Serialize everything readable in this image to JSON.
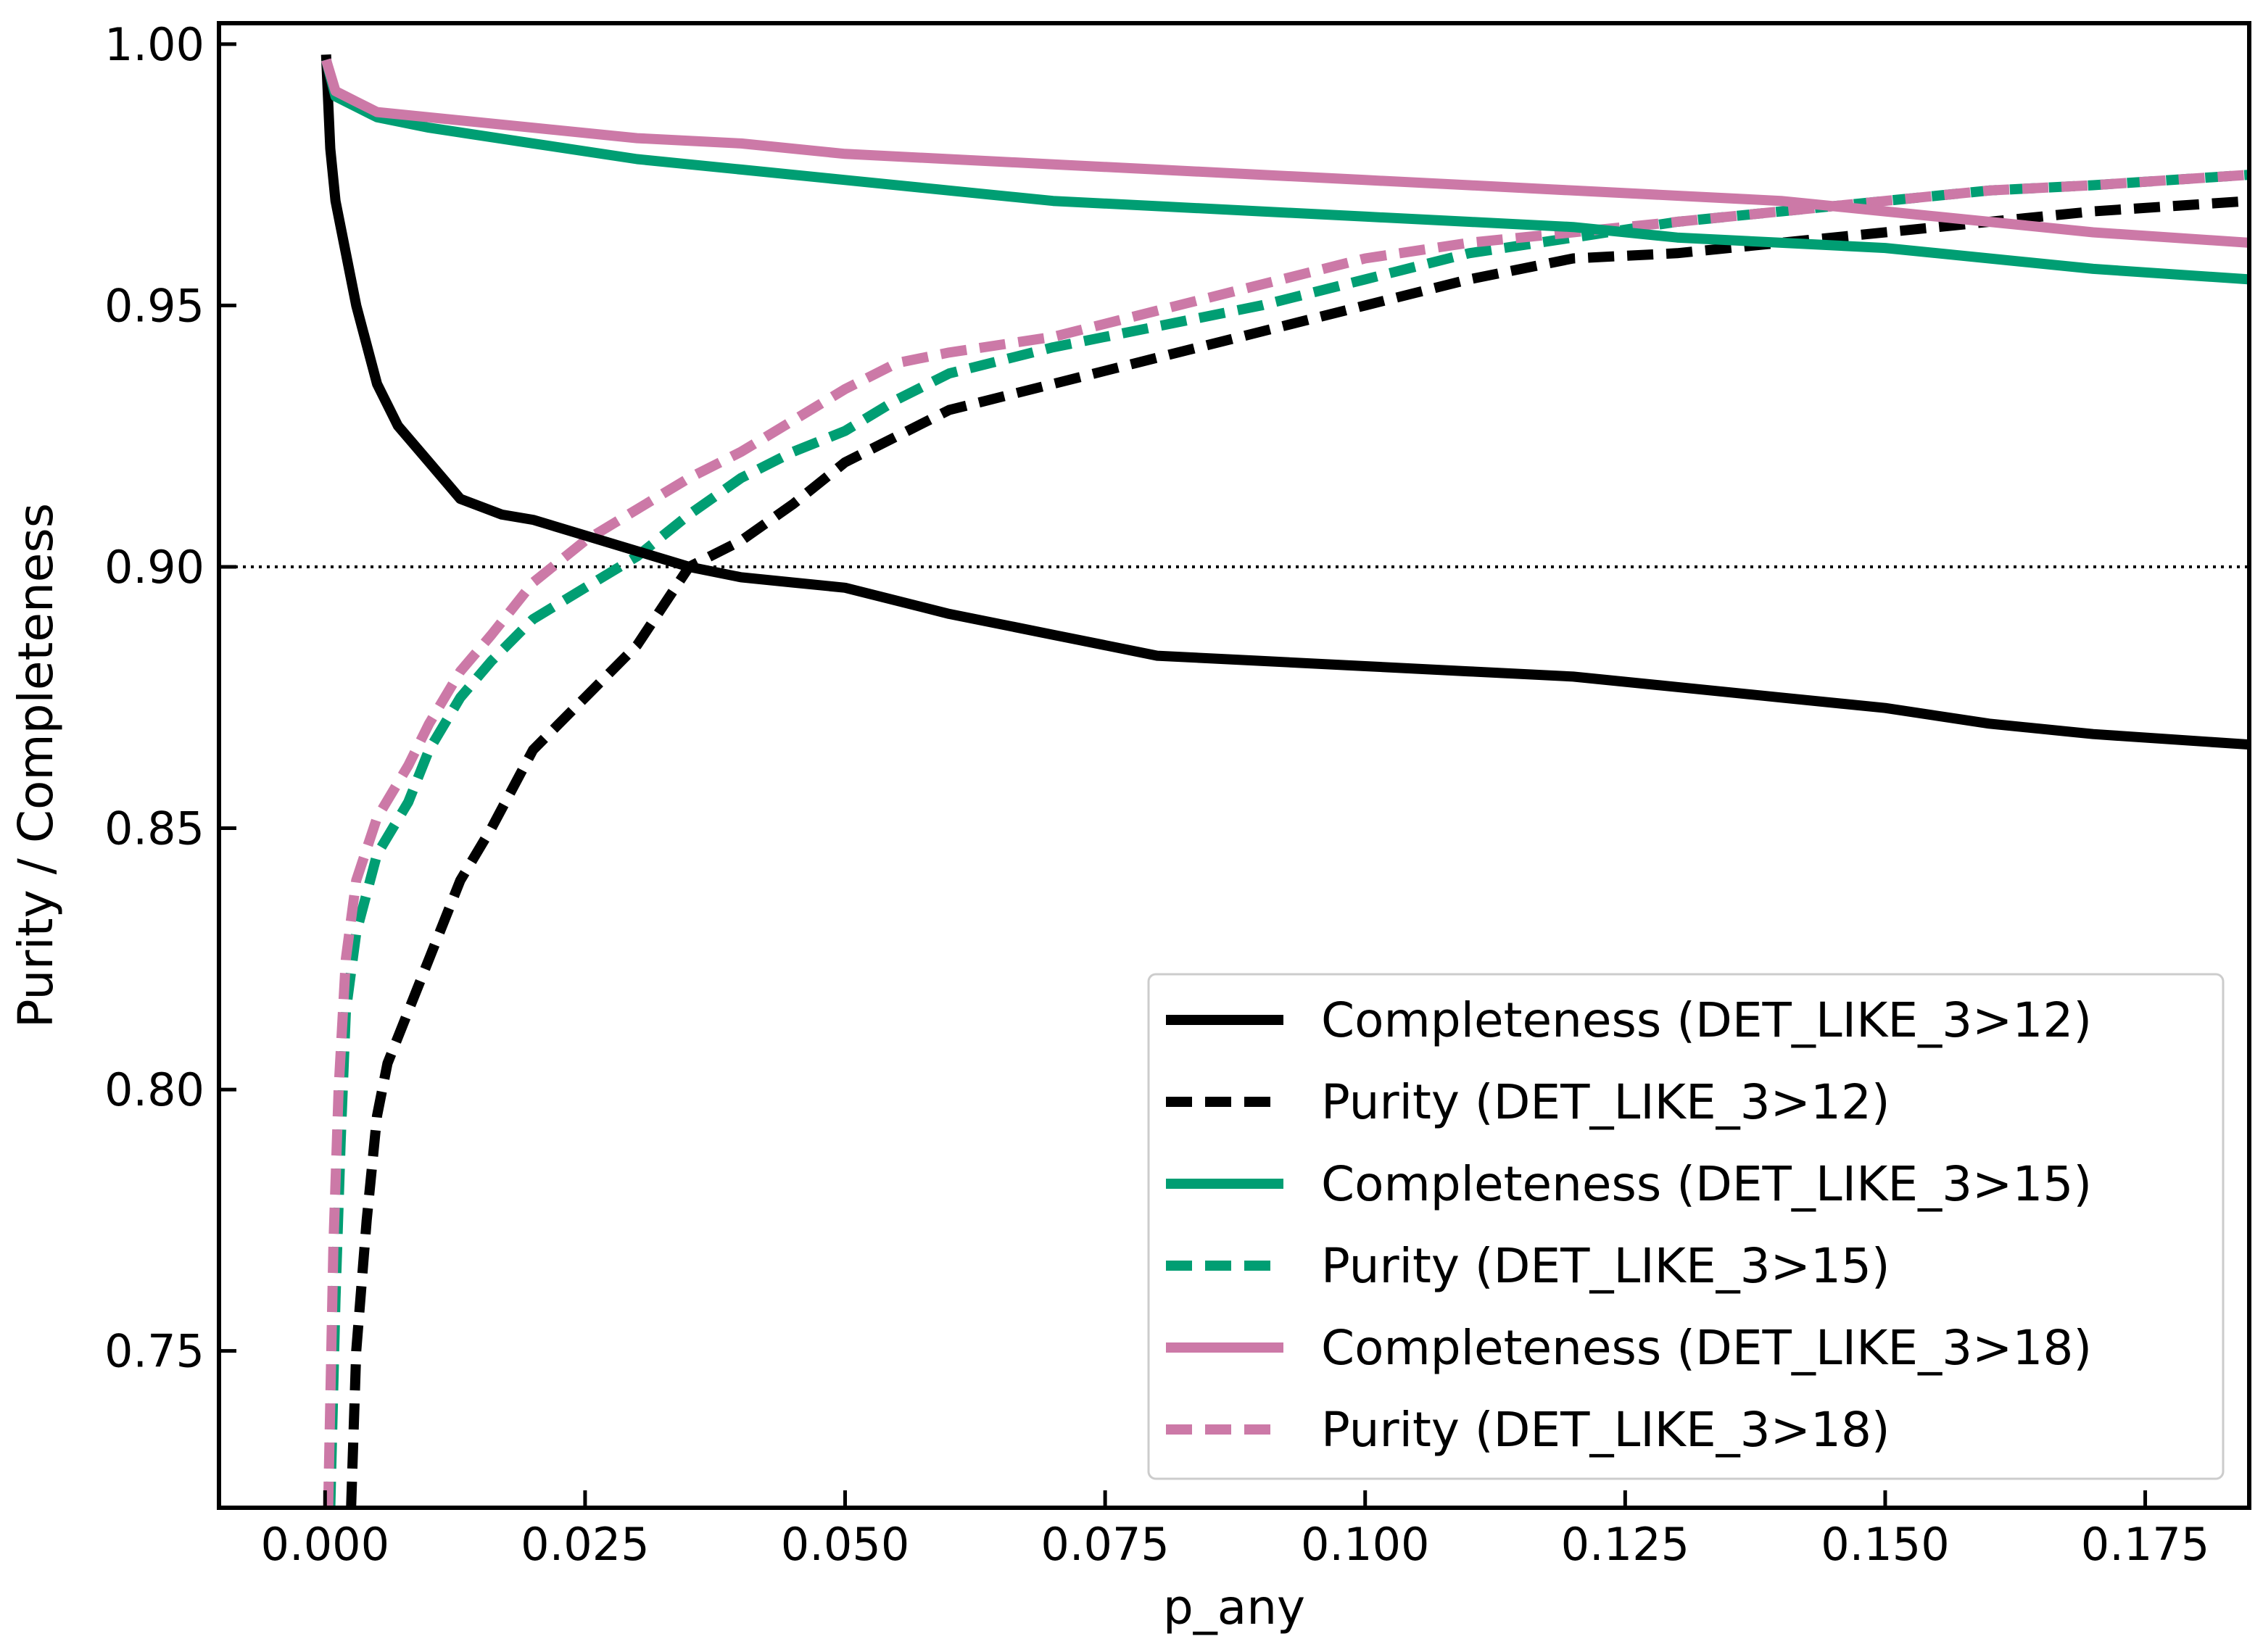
{
  "chart_data": {
    "type": "line",
    "xlabel": "p_any",
    "ylabel": "Purity / Completeness",
    "xlim": [
      -0.0102,
      0.185
    ],
    "ylim": [
      0.72,
      1.004
    ],
    "xticks": [
      0.0,
      0.025,
      0.05,
      0.075,
      0.1,
      0.125,
      0.15,
      0.175
    ],
    "xtick_labels": [
      "0.000",
      "0.025",
      "0.050",
      "0.075",
      "0.100",
      "0.125",
      "0.150",
      "0.175"
    ],
    "yticks": [
      0.75,
      0.8,
      0.85,
      0.9,
      0.95,
      1.0
    ],
    "ytick_labels": [
      "0.75",
      "0.80",
      "0.85",
      "0.90",
      "0.95",
      "1.00"
    ],
    "reference_line": {
      "y": 0.9,
      "style": "dotted",
      "color": "#000000"
    },
    "legend_position": "lower-right",
    "series": [
      {
        "name": "Completeness (DET_LIKE_3>12)",
        "color": "#000000",
        "style": "solid",
        "x": [
          0.0001,
          0.0005,
          0.001,
          0.002,
          0.003,
          0.005,
          0.007,
          0.01,
          0.013,
          0.017,
          0.02,
          0.025,
          0.03,
          0.035,
          0.04,
          0.045,
          0.05,
          0.06,
          0.07,
          0.08,
          0.09,
          0.1,
          0.11,
          0.12,
          0.13,
          0.14,
          0.15,
          0.16,
          0.17,
          0.185
        ],
        "y": [
          0.998,
          0.98,
          0.97,
          0.96,
          0.95,
          0.935,
          0.927,
          0.92,
          0.913,
          0.91,
          0.909,
          0.906,
          0.903,
          0.9,
          0.898,
          0.897,
          0.896,
          0.891,
          0.887,
          0.883,
          0.882,
          0.881,
          0.88,
          0.879,
          0.877,
          0.875,
          0.873,
          0.87,
          0.868,
          0.866
        ]
      },
      {
        "name": "Purity (DET_LIKE_3>12)",
        "color": "#000000",
        "style": "dashed",
        "x": [
          0.0025,
          0.003,
          0.004,
          0.005,
          0.006,
          0.008,
          0.01,
          0.013,
          0.016,
          0.02,
          0.025,
          0.03,
          0.035,
          0.04,
          0.045,
          0.05,
          0.055,
          0.06,
          0.07,
          0.08,
          0.09,
          0.1,
          0.11,
          0.12,
          0.13,
          0.14,
          0.15,
          0.16,
          0.17,
          0.185
        ],
        "y": [
          0.72,
          0.75,
          0.775,
          0.795,
          0.805,
          0.815,
          0.825,
          0.84,
          0.85,
          0.865,
          0.875,
          0.885,
          0.9,
          0.905,
          0.912,
          0.92,
          0.925,
          0.93,
          0.935,
          0.94,
          0.945,
          0.95,
          0.955,
          0.959,
          0.96,
          0.962,
          0.964,
          0.966,
          0.968,
          0.97
        ]
      },
      {
        "name": "Completeness (DET_LIKE_3>15)",
        "color": "#009e73",
        "style": "solid",
        "x": [
          0.0001,
          0.001,
          0.003,
          0.005,
          0.01,
          0.02,
          0.03,
          0.04,
          0.05,
          0.06,
          0.07,
          0.08,
          0.09,
          0.1,
          0.11,
          0.12,
          0.13,
          0.14,
          0.15,
          0.16,
          0.17,
          0.185
        ],
        "y": [
          0.997,
          0.99,
          0.988,
          0.986,
          0.984,
          0.981,
          0.978,
          0.976,
          0.974,
          0.972,
          0.97,
          0.969,
          0.968,
          0.967,
          0.966,
          0.965,
          0.963,
          0.962,
          0.961,
          0.959,
          0.957,
          0.955
        ]
      },
      {
        "name": "Purity (DET_LIKE_3>15)",
        "color": "#009e73",
        "style": "dashed",
        "x": [
          0.0005,
          0.001,
          0.0015,
          0.002,
          0.003,
          0.005,
          0.008,
          0.01,
          0.013,
          0.016,
          0.02,
          0.025,
          0.03,
          0.035,
          0.04,
          0.045,
          0.05,
          0.055,
          0.06,
          0.07,
          0.08,
          0.09,
          0.1,
          0.11,
          0.12,
          0.13,
          0.14,
          0.15,
          0.16,
          0.17,
          0.185
        ],
        "y": [
          0.72,
          0.76,
          0.79,
          0.815,
          0.83,
          0.845,
          0.855,
          0.865,
          0.875,
          0.882,
          0.89,
          0.896,
          0.902,
          0.91,
          0.917,
          0.922,
          0.926,
          0.932,
          0.937,
          0.942,
          0.946,
          0.95,
          0.955,
          0.96,
          0.963,
          0.966,
          0.968,
          0.97,
          0.972,
          0.973,
          0.975
        ]
      },
      {
        "name": "Completeness (DET_LIKE_3>18)",
        "color": "#cc79a7",
        "style": "solid",
        "x": [
          0.0001,
          0.001,
          0.003,
          0.005,
          0.01,
          0.02,
          0.03,
          0.04,
          0.05,
          0.06,
          0.07,
          0.08,
          0.09,
          0.1,
          0.11,
          0.12,
          0.13,
          0.14,
          0.15,
          0.16,
          0.17,
          0.185
        ],
        "y": [
          0.997,
          0.991,
          0.989,
          0.987,
          0.986,
          0.984,
          0.982,
          0.981,
          0.979,
          0.978,
          0.977,
          0.976,
          0.975,
          0.974,
          0.973,
          0.972,
          0.971,
          0.97,
          0.968,
          0.966,
          0.964,
          0.962
        ]
      },
      {
        "name": "Purity (DET_LIKE_3>18)",
        "color": "#cc79a7",
        "style": "dashed",
        "x": [
          0.0003,
          0.0008,
          0.0013,
          0.002,
          0.003,
          0.005,
          0.008,
          0.01,
          0.013,
          0.016,
          0.02,
          0.025,
          0.03,
          0.035,
          0.04,
          0.045,
          0.05,
          0.055,
          0.06,
          0.07,
          0.08,
          0.09,
          0.1,
          0.11,
          0.12,
          0.13,
          0.14,
          0.15,
          0.16,
          0.17,
          0.185
        ],
        "y": [
          0.72,
          0.77,
          0.8,
          0.825,
          0.84,
          0.852,
          0.862,
          0.87,
          0.88,
          0.887,
          0.897,
          0.905,
          0.911,
          0.917,
          0.922,
          0.928,
          0.934,
          0.939,
          0.941,
          0.944,
          0.949,
          0.954,
          0.959,
          0.962,
          0.964,
          0.966,
          0.968,
          0.97,
          0.972,
          0.973,
          0.975
        ]
      }
    ]
  }
}
